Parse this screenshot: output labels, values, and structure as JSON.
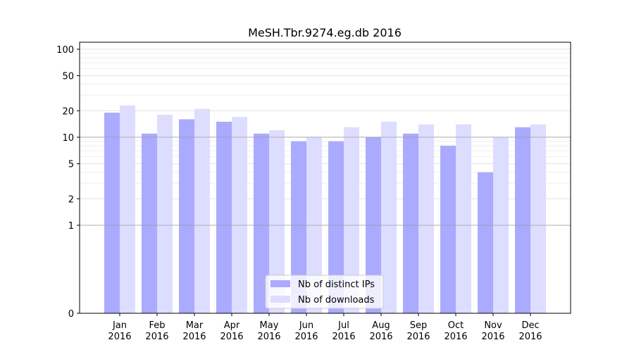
{
  "chart_data": {
    "type": "bar",
    "title": "MeSH.Tbr.9274.eg.db 2016",
    "xlabel": "",
    "ylabel": "",
    "y_scale": "symlog",
    "ylim": [
      0,
      120
    ],
    "y_ticks": [
      {
        "value": 0,
        "label": "0"
      },
      {
        "value": 1,
        "label": "1"
      },
      {
        "value": 2,
        "label": "2"
      },
      {
        "value": 5,
        "label": "5"
      },
      {
        "value": 10,
        "label": "10"
      },
      {
        "value": 20,
        "label": "20"
      },
      {
        "value": 50,
        "label": "50"
      },
      {
        "value": 100,
        "label": "100"
      }
    ],
    "categories": [
      [
        "Jan",
        "2016"
      ],
      [
        "Feb",
        "2016"
      ],
      [
        "Mar",
        "2016"
      ],
      [
        "Apr",
        "2016"
      ],
      [
        "May",
        "2016"
      ],
      [
        "Jun",
        "2016"
      ],
      [
        "Jul",
        "2016"
      ],
      [
        "Aug",
        "2016"
      ],
      [
        "Sep",
        "2016"
      ],
      [
        "Oct",
        "2016"
      ],
      [
        "Nov",
        "2016"
      ],
      [
        "Dec",
        "2016"
      ]
    ],
    "series": [
      {
        "name": "Nb of distinct IPs",
        "color": "#aaaaff",
        "values": [
          19,
          11,
          16,
          15,
          11,
          9,
          9,
          10,
          11,
          8,
          4,
          13
        ]
      },
      {
        "name": "Nb of downloads",
        "color": "#ddddff",
        "values": [
          23,
          18,
          21,
          17,
          12,
          10,
          13,
          15,
          14,
          14,
          10,
          14
        ]
      }
    ],
    "legend_position": "bottom-center",
    "grid": true
  }
}
